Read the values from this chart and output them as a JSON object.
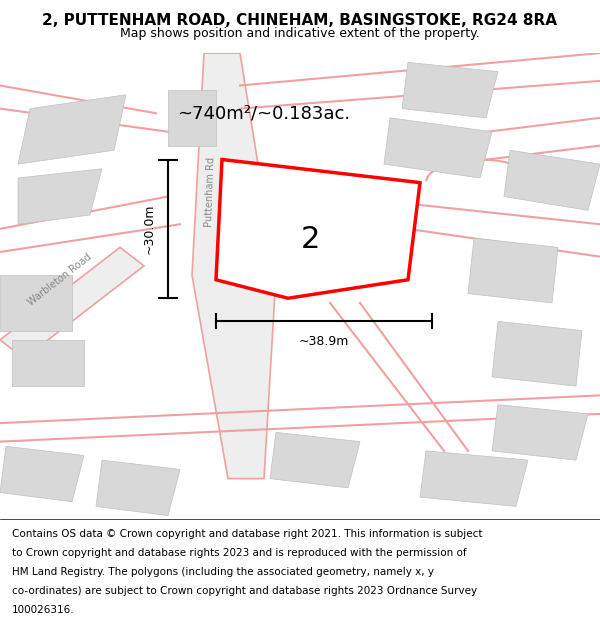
{
  "title": "2, PUTTENHAM ROAD, CHINEHAM, BASINGSTOKE, RG24 8RA",
  "subtitle": "Map shows position and indicative extent of the property.",
  "footer_lines": [
    "Contains OS data © Crown copyright and database right 2021. This information is subject",
    "to Crown copyright and database rights 2023 and is reproduced with the permission of",
    "HM Land Registry. The polygons (including the associated geometry, namely x, y",
    "co-ordinates) are subject to Crown copyright and database rights 2023 Ordnance Survey",
    "100026316."
  ],
  "area_label": "~740m²/~0.183ac.",
  "plot_number": "2",
  "dim_width": "~38.9m",
  "dim_height": "~30.0m",
  "road_label_1": "Warbleton Road",
  "road_label_2": "Puttenham Rd",
  "map_bg": "#ffffff",
  "road_color": "#f0a0a0",
  "road_fill": "#eeeeee",
  "plot_color": "#ff0000",
  "building_fill": "#d8d8d8",
  "building_edge": "#c0c0c0",
  "title_fontsize": 11,
  "subtitle_fontsize": 9,
  "footer_fontsize": 7.5
}
